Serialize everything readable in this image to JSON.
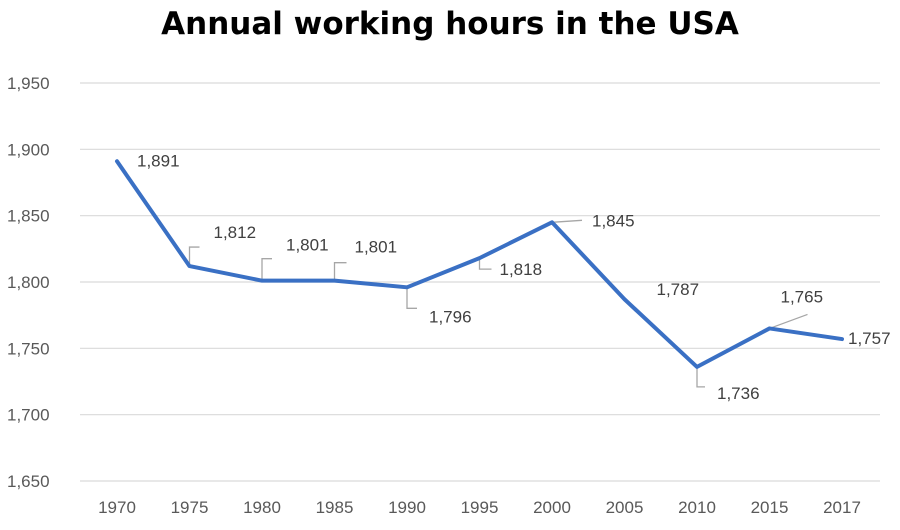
{
  "chart_data": {
    "type": "line",
    "title": "Annual working hours in the USA",
    "xlabel": "",
    "ylabel": "",
    "categories": [
      "1970",
      "1975",
      "1980",
      "1985",
      "1990",
      "1995",
      "2000",
      "2005",
      "2010",
      "2015",
      "2017"
    ],
    "series": [
      {
        "values": [
          1891,
          1812,
          1801,
          1801,
          1796,
          1818,
          1845,
          1787,
          1736,
          1765,
          1757
        ]
      }
    ],
    "data_labels": [
      "1,891",
      "1,812",
      "1,801",
      "1,801",
      "1,796",
      "1,818",
      "1,845",
      "1,787",
      "1,736",
      "1,765",
      "1,757"
    ],
    "y_ticks": [
      1650,
      1700,
      1750,
      1800,
      1850,
      1900,
      1950
    ],
    "y_tick_labels": [
      "1,650",
      "1,700",
      "1,750",
      "1,800",
      "1,850",
      "1,900",
      "1,950"
    ],
    "ylim": [
      1650,
      1950
    ],
    "grid": true,
    "legend": "none",
    "colors": {
      "line": "#3a70c4",
      "grid": "#d9d9d9",
      "leader": "#a6a6a6"
    }
  }
}
